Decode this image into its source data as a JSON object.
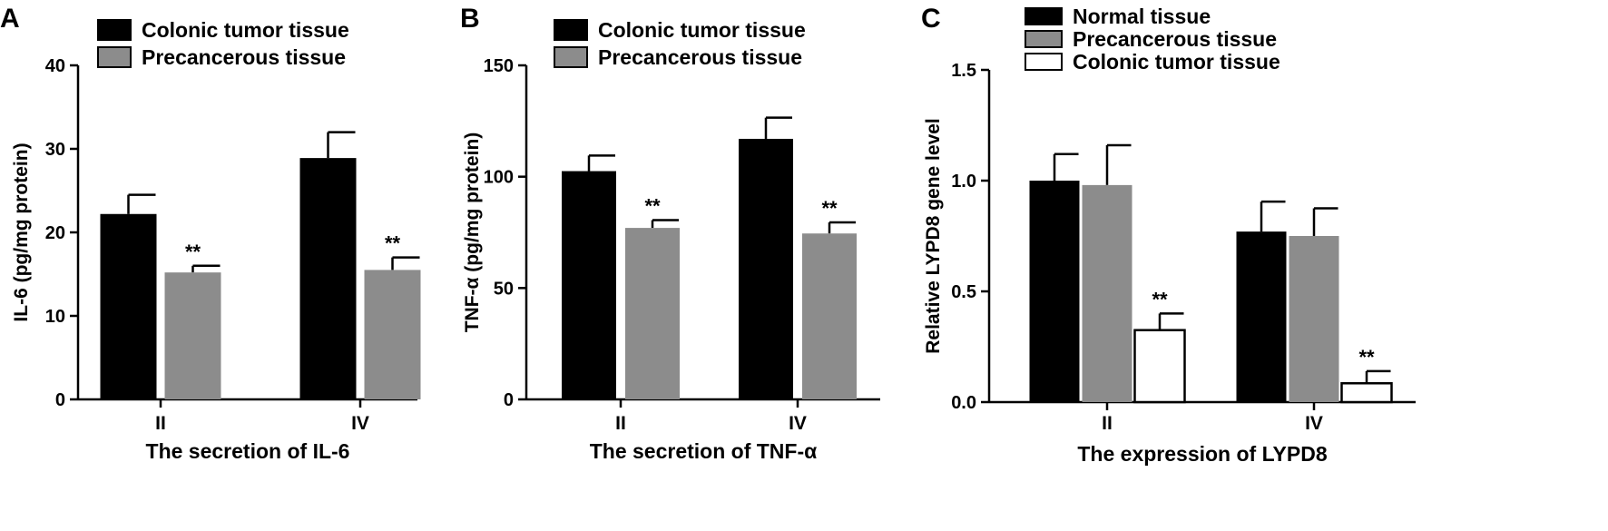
{
  "chart_data": [
    {
      "panel": "A",
      "type": "bar",
      "categories": [
        "II",
        "IV"
      ],
      "series": [
        {
          "name": "Colonic tumor tissue",
          "values": [
            22.2,
            28.9
          ],
          "errors": [
            2.3,
            3.1
          ],
          "color": "#000000",
          "annotations": [
            "",
            ""
          ]
        },
        {
          "name": "Precancerous tissue",
          "values": [
            15.2,
            15.5
          ],
          "errors": [
            0.8,
            1.5
          ],
          "color": "#8c8c8c",
          "annotations": [
            "**",
            "**"
          ]
        }
      ],
      "xlabel": "The secretion of IL-6",
      "ylabel": "IL-6 (pg/mg protein)",
      "ylim": [
        0,
        40
      ],
      "yticks": [
        "0",
        "10",
        "20",
        "30",
        "40"
      ],
      "legend": "top-left",
      "grid": false
    },
    {
      "panel": "B",
      "type": "bar",
      "categories": [
        "II",
        "IV"
      ],
      "series": [
        {
          "name": "Colonic tumor tissue",
          "values": [
            102.5,
            117
          ],
          "errors": [
            7,
            9.5
          ],
          "color": "#000000",
          "annotations": [
            "",
            ""
          ]
        },
        {
          "name": "Precancerous tissue",
          "values": [
            77,
            74.5
          ],
          "errors": [
            3.5,
            5
          ],
          "color": "#8c8c8c",
          "annotations": [
            "**",
            "**"
          ]
        }
      ],
      "xlabel": "The secretion of TNF-α",
      "ylabel": "TNF-α  (pg/mg protein)",
      "ylim": [
        0,
        150
      ],
      "yticks": [
        "0",
        "50",
        "100",
        "150"
      ],
      "legend": "top-left",
      "grid": false
    },
    {
      "panel": "C",
      "type": "bar",
      "categories": [
        "II",
        "IV"
      ],
      "series": [
        {
          "name": "Normal tissue",
          "values": [
            1.0,
            0.77
          ],
          "errors": [
            0.12,
            0.135
          ],
          "color": "#000000",
          "annotations": [
            "",
            ""
          ]
        },
        {
          "name": "Precancerous tissue",
          "values": [
            0.98,
            0.75
          ],
          "errors": [
            0.18,
            0.125
          ],
          "color": "#8c8c8c",
          "annotations": [
            "",
            ""
          ]
        },
        {
          "name": "Colonic tumor tissue",
          "values": [
            0.325,
            0.085
          ],
          "errors": [
            0.075,
            0.055
          ],
          "color": "#ffffff",
          "annotations": [
            "**",
            "**"
          ]
        }
      ],
      "xlabel": "The expression of LYPD8",
      "ylabel": "Relative LYPD8 gene level",
      "ylim": [
        0,
        1.5
      ],
      "yticks": [
        "0.0",
        "0.5",
        "1.0",
        "1.5"
      ],
      "legend": "top-left",
      "grid": false
    }
  ]
}
